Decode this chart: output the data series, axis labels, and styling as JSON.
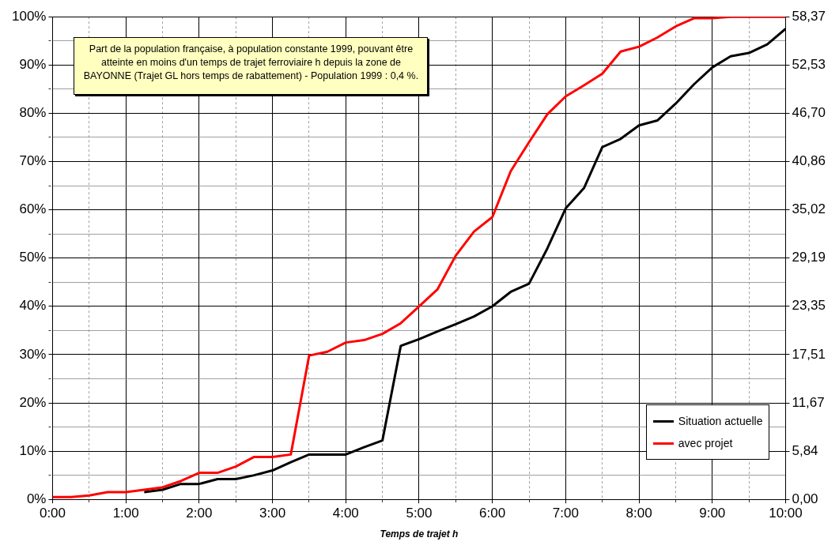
{
  "chart_data": {
    "type": "line",
    "xlabel": "Temps de trajet h",
    "annotations": [
      "Part de la population française, à population  constante 1999, pouvant être atteinte en moins d'un temps de trajet ferroviaire h depuis la zone de BAYONNE (Trajet GL hors temps de rabattement) - Population 1999 : 0,4 %."
    ],
    "x": [
      0,
      0.25,
      0.5,
      0.75,
      1,
      1.25,
      1.5,
      1.75,
      2,
      2.25,
      2.5,
      2.75,
      3,
      3.25,
      3.5,
      3.75,
      4,
      4.25,
      4.5,
      4.75,
      5,
      5.25,
      5.5,
      5.75,
      6,
      6.25,
      6.5,
      6.75,
      7,
      7.25,
      7.5,
      7.75,
      8,
      8.25,
      8.5,
      8.75,
      9,
      9.25,
      9.5,
      9.75,
      10
    ],
    "series": [
      {
        "name": "Situation actuelle",
        "color": "#000000",
        "values": [
          null,
          null,
          null,
          null,
          null,
          1.5,
          2,
          3.2,
          3.2,
          4.2,
          4.2,
          5,
          6,
          7.7,
          9.3,
          9.3,
          9.3,
          10.8,
          12.2,
          31.8,
          33.2,
          34.8,
          36.3,
          37.9,
          40,
          43,
          44.7,
          52,
          60.3,
          64.5,
          73,
          74.7,
          77.5,
          78.5,
          82,
          86,
          89.5,
          91.8,
          92.5,
          94.3,
          97.5
        ]
      },
      {
        "name": "avec projet",
        "color": "#ff0000",
        "values": [
          0.5,
          0.5,
          0.8,
          1.5,
          1.5,
          2,
          2.5,
          3.8,
          5.5,
          5.5,
          6.8,
          8.8,
          8.8,
          9.3,
          29.8,
          30.6,
          32.5,
          33,
          34.3,
          36.5,
          40,
          43.5,
          50.5,
          55.5,
          58.5,
          68,
          74,
          79.8,
          83.5,
          85.8,
          88.2,
          92.8,
          93.8,
          95.7,
          98,
          99.7,
          99.7,
          100,
          100,
          100,
          100
        ]
      }
    ],
    "xlim": [
      0,
      10
    ],
    "xticks": [
      {
        "value": 0,
        "label": "0:00"
      },
      {
        "value": 0.5,
        "label": null
      },
      {
        "value": 1,
        "label": "1:00"
      },
      {
        "value": 1.5,
        "label": null
      },
      {
        "value": 2,
        "label": "2:00"
      },
      {
        "value": 2.5,
        "label": null
      },
      {
        "value": 3,
        "label": "3:00"
      },
      {
        "value": 3.5,
        "label": null
      },
      {
        "value": 4,
        "label": "4:00"
      },
      {
        "value": 4.5,
        "label": null
      },
      {
        "value": 5,
        "label": "5:00"
      },
      {
        "value": 5.5,
        "label": null
      },
      {
        "value": 6,
        "label": "6:00"
      },
      {
        "value": 6.5,
        "label": null
      },
      {
        "value": 7,
        "label": "7:00"
      },
      {
        "value": 7.5,
        "label": null
      },
      {
        "value": 8,
        "label": "8:00"
      },
      {
        "value": 8.5,
        "label": null
      },
      {
        "value": 9,
        "label": "9:00"
      },
      {
        "value": 9.5,
        "label": null
      },
      {
        "value": 10,
        "label": "10:00"
      }
    ],
    "ylim": [
      0,
      100
    ],
    "yticks": [
      {
        "value": 0,
        "label": "0%"
      },
      {
        "value": 5,
        "label": null
      },
      {
        "value": 10,
        "label": "10%"
      },
      {
        "value": 15,
        "label": null
      },
      {
        "value": 20,
        "label": "20%"
      },
      {
        "value": 25,
        "label": null
      },
      {
        "value": 30,
        "label": "30%"
      },
      {
        "value": 35,
        "label": null
      },
      {
        "value": 40,
        "label": "40%"
      },
      {
        "value": 45,
        "label": null
      },
      {
        "value": 50,
        "label": "50%"
      },
      {
        "value": 55,
        "label": null
      },
      {
        "value": 60,
        "label": "60%"
      },
      {
        "value": 65,
        "label": null
      },
      {
        "value": 70,
        "label": "70%"
      },
      {
        "value": 75,
        "label": null
      },
      {
        "value": 80,
        "label": "80%"
      },
      {
        "value": 85,
        "label": null
      },
      {
        "value": 90,
        "label": "90%"
      },
      {
        "value": 95,
        "label": null
      },
      {
        "value": 100,
        "label": "100%"
      }
    ],
    "y2lim": [
      0,
      58.37
    ],
    "y2ticks": [
      {
        "value": 0,
        "label": "0,00"
      },
      {
        "value": 5.84,
        "label": "5,84"
      },
      {
        "value": 11.67,
        "label": "11,67"
      },
      {
        "value": 17.51,
        "label": "17,51"
      },
      {
        "value": 23.35,
        "label": "23,35"
      },
      {
        "value": 29.19,
        "label": "29,19"
      },
      {
        "value": 35.02,
        "label": "35,02"
      },
      {
        "value": 40.86,
        "label": "40,86"
      },
      {
        "value": 46.7,
        "label": "46,70"
      },
      {
        "value": 52.53,
        "label": "52,53"
      },
      {
        "value": 58.37,
        "label": "58,37"
      }
    ],
    "grid": true,
    "legend": "bottom right",
    "marker": "none",
    "line_style": "solid"
  }
}
